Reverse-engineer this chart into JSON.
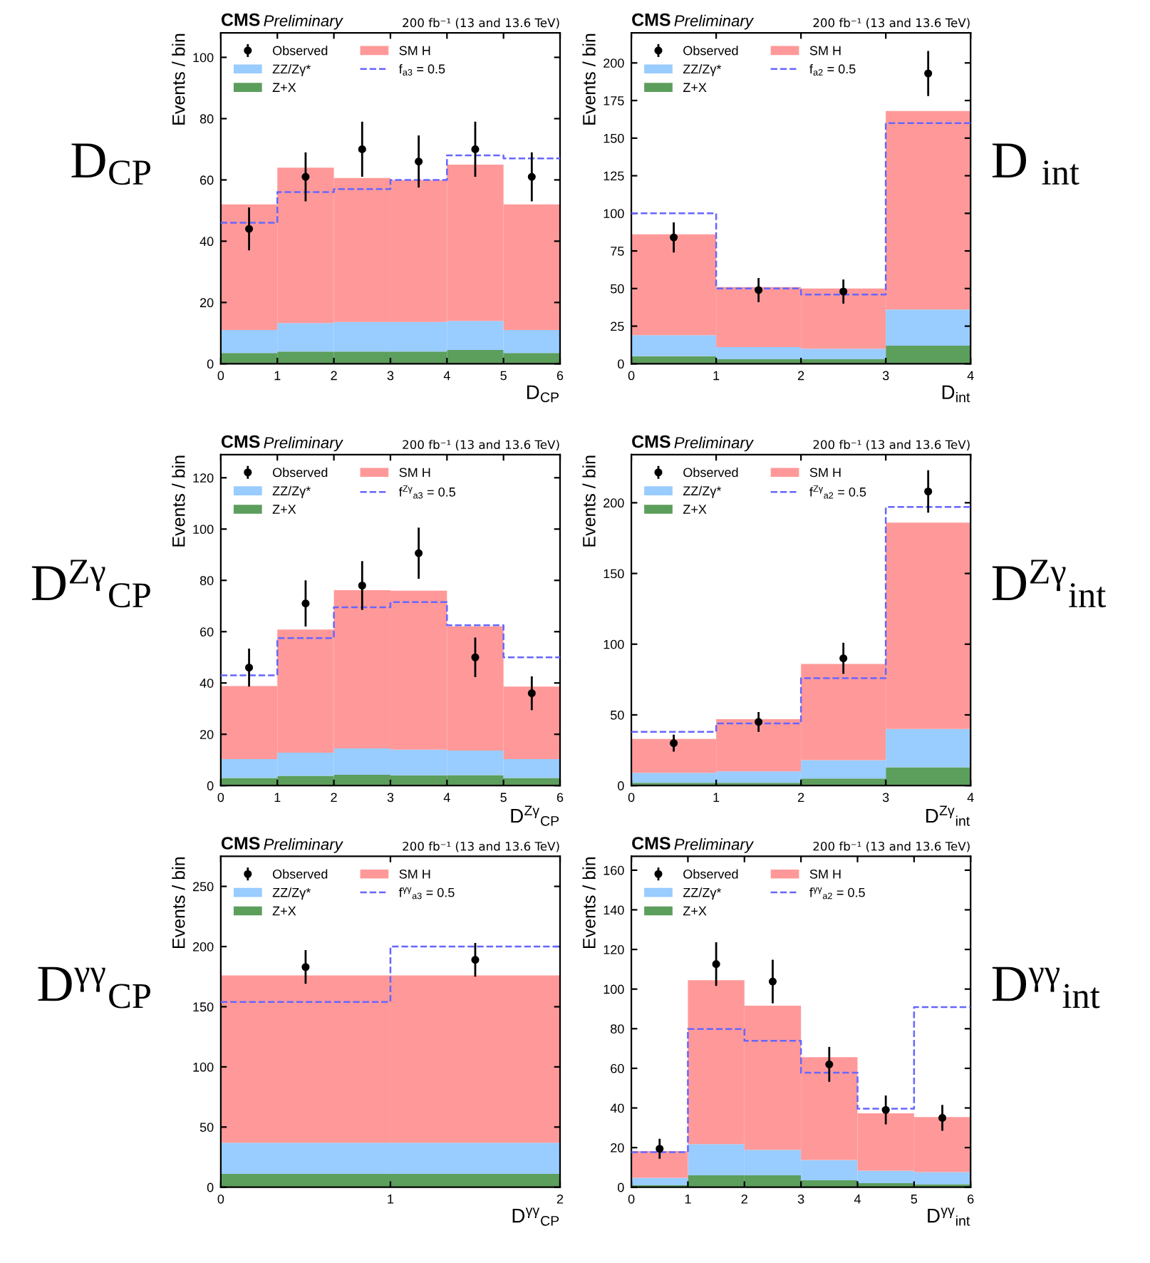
{
  "chart_data": [
    {
      "type": "bar",
      "title": "CMS",
      "subtitle": "Preliminary",
      "xlabel": "D$_{CP}$",
      "ylabel": "Events / bin",
      "annotations": [
        "200 fb⁻¹ (13 and 13.6 TeV)",
        "D$_{CP}$"
      ],
      "x": [
        0.5,
        1.5,
        2.5,
        3.5,
        4.5,
        5.5
      ],
      "stacked": true,
      "legend": "top left",
      "xlim": [
        0,
        6
      ],
      "xticks": [
        0,
        1,
        2,
        3,
        4,
        5,
        6
      ],
      "ylim": [
        0,
        108
      ],
      "yticks": [
        0,
        20,
        40,
        60,
        80,
        100
      ],
      "series": [
        {
          "name": "Z+X",
          "color": "#5c9e5c",
          "values": [
            3.5,
            4,
            4,
            4,
            4.5,
            3.5
          ]
        },
        {
          "name": "ZZ/Zγ*",
          "color": "#99ccff",
          "values": [
            7.5,
            9.3,
            9.6,
            9.6,
            9.5,
            7.5
          ]
        },
        {
          "name": "SM H",
          "color": "#ff9999",
          "values": [
            41,
            50.7,
            47,
            46.4,
            51,
            41
          ]
        },
        {
          "name": "f$_{a3}$ = 0.5",
          "type": "step",
          "line_style": "dashed",
          "color": "#6666ff",
          "x": [
            0,
            1,
            2,
            3,
            4,
            5,
            6
          ],
          "values": [
            46,
            56,
            57,
            60,
            68,
            67,
            67
          ]
        },
        {
          "name": "Observed",
          "type": "scatter",
          "marker": "circle",
          "color": "#000000",
          "values": [
            44,
            61,
            70,
            66,
            70,
            61
          ],
          "errors": [
            7,
            8,
            9,
            8.5,
            9,
            8
          ]
        }
      ]
    },
    {
      "type": "bar",
      "title": "CMS",
      "subtitle": "Preliminary",
      "xlabel": "D$_{int}$",
      "ylabel": "Events / bin",
      "annotations": [
        "200 fb⁻¹ (13 and 13.6 TeV)",
        "D $_{int}$"
      ],
      "x": [
        0.5,
        1.5,
        2.5,
        3.5
      ],
      "stacked": true,
      "legend": "top left",
      "xlim": [
        0,
        4
      ],
      "xticks": [
        0,
        1,
        2,
        3,
        4
      ],
      "ylim": [
        0,
        220
      ],
      "yticks": [
        0,
        25,
        50,
        75,
        100,
        125,
        150,
        175,
        200
      ],
      "series": [
        {
          "name": "Z+X",
          "color": "#5c9e5c",
          "values": [
            5,
            3,
            3,
            12
          ]
        },
        {
          "name": "ZZ/Zγ*",
          "color": "#99ccff",
          "values": [
            14,
            8,
            7,
            24
          ]
        },
        {
          "name": "SM H",
          "color": "#ff9999",
          "values": [
            67,
            40,
            40,
            132
          ]
        },
        {
          "name": "f$_{a2}$ = 0.5",
          "type": "step",
          "line_style": "dashed",
          "color": "#6666ff",
          "x": [
            0,
            1,
            2,
            3,
            4
          ],
          "values": [
            100,
            50,
            46,
            160,
            160
          ]
        },
        {
          "name": "Observed",
          "type": "scatter",
          "marker": "circle",
          "color": "#000000",
          "values": [
            84,
            49,
            48,
            193
          ],
          "errors": [
            10,
            8,
            8,
            15
          ]
        }
      ]
    },
    {
      "type": "bar",
      "title": "CMS",
      "subtitle": "Preliminary",
      "xlabel": "D$^{Zγ}$$_{CP}$",
      "ylabel": "Events / bin",
      "annotations": [
        "200 fb⁻¹ (13 and 13.6 TeV)",
        "D$^{Zγ}$$_{CP}$"
      ],
      "x": [
        0.5,
        1.5,
        2.5,
        3.5,
        4.5,
        5.5
      ],
      "stacked": true,
      "legend": "top left",
      "xlim": [
        0,
        6
      ],
      "xticks": [
        0,
        1,
        2,
        3,
        4,
        5,
        6
      ],
      "ylim": [
        0,
        129
      ],
      "yticks": [
        0,
        20,
        40,
        60,
        80,
        100,
        120
      ],
      "series": [
        {
          "name": "Z+X",
          "color": "#5c9e5c",
          "values": [
            3,
            3.8,
            4.2,
            4,
            4.1,
            3
          ]
        },
        {
          "name": "ZZ/Zγ*",
          "color": "#99ccff",
          "values": [
            7.3,
            9,
            10.3,
            10,
            9.6,
            7.3
          ]
        },
        {
          "name": "SM H",
          "color": "#ff9999",
          "values": [
            28.5,
            48,
            61.7,
            62,
            48.4,
            28.3
          ]
        },
        {
          "name": "f$^{Zγ}$$_{a3}$ = 0.5",
          "type": "step",
          "line_style": "dashed",
          "color": "#6666ff",
          "x": [
            0,
            1,
            2,
            3,
            4,
            5,
            6
          ],
          "values": [
            43,
            57.5,
            69.5,
            71.5,
            62.5,
            50,
            50
          ]
        },
        {
          "name": "Observed",
          "type": "scatter",
          "marker": "circle",
          "color": "#000000",
          "values": [
            46,
            71,
            78,
            90.6,
            50,
            36
          ],
          "errors": [
            7.4,
            9,
            9.5,
            10,
            7.7,
            6.6
          ]
        }
      ]
    },
    {
      "type": "bar",
      "title": "CMS",
      "subtitle": "Preliminary",
      "xlabel": "D$^{Zγ}$$_{int}$",
      "ylabel": "Events / bin",
      "annotations": [
        "200 fb⁻¹ (13 and 13.6 TeV)",
        "D$^{Zγ}$$_{int}$"
      ],
      "x": [
        0.5,
        1.5,
        2.5,
        3.5
      ],
      "stacked": true,
      "legend": "top left",
      "xlim": [
        0,
        4
      ],
      "xticks": [
        0,
        1,
        2,
        3,
        4
      ],
      "ylim": [
        0,
        234
      ],
      "yticks": [
        0,
        50,
        100,
        150,
        200
      ],
      "series": [
        {
          "name": "Z+X",
          "color": "#5c9e5c",
          "values": [
            2,
            2,
            5,
            13
          ]
        },
        {
          "name": "ZZ/Zγ*",
          "color": "#99ccff",
          "values": [
            7,
            8,
            13,
            27
          ]
        },
        {
          "name": "SM H",
          "color": "#ff9999",
          "values": [
            24,
            37,
            68,
            146
          ]
        },
        {
          "name": "f$^{Zγ}$$_{a2}$ = 0.5",
          "type": "step",
          "line_style": "dashed",
          "color": "#6666ff",
          "x": [
            0,
            1,
            2,
            3,
            4
          ],
          "values": [
            38,
            44,
            76,
            197,
            197
          ]
        },
        {
          "name": "Observed",
          "type": "scatter",
          "marker": "circle",
          "color": "#000000",
          "values": [
            30,
            45,
            90,
            208
          ],
          "errors": [
            6,
            7,
            11,
            15
          ]
        }
      ]
    },
    {
      "type": "bar",
      "title": "CMS",
      "subtitle": "Preliminary",
      "xlabel": "D$^{γγ}$$_{CP}$",
      "ylabel": "Events / bin",
      "annotations": [
        "200 fb⁻¹ (13 and 13.6 TeV)",
        "D$^{γγ}$$_{CP}$"
      ],
      "x": [
        0.5,
        1.5
      ],
      "stacked": true,
      "legend": "top left",
      "xlim": [
        0,
        2
      ],
      "xticks": [
        0,
        1,
        2
      ],
      "ylim": [
        0,
        275
      ],
      "yticks": [
        0,
        50,
        100,
        150,
        200,
        250
      ],
      "series": [
        {
          "name": "Z+X",
          "color": "#5c9e5c",
          "values": [
            11,
            11
          ]
        },
        {
          "name": "ZZ/Zγ*",
          "color": "#99ccff",
          "values": [
            26,
            26
          ]
        },
        {
          "name": "SM H",
          "color": "#ff9999",
          "values": [
            139,
            139
          ]
        },
        {
          "name": "f$^{γγ}$$_{a3}$ = 0.5",
          "type": "step",
          "line_style": "dashed",
          "color": "#6666ff",
          "x": [
            0,
            1,
            2
          ],
          "values": [
            154,
            200,
            200
          ]
        },
        {
          "name": "Observed",
          "type": "scatter",
          "marker": "circle",
          "color": "#000000",
          "values": [
            183,
            189
          ],
          "errors": [
            14,
            14
          ]
        }
      ]
    },
    {
      "type": "bar",
      "title": "CMS",
      "subtitle": "Preliminary",
      "xlabel": "D$^{γγ}$$_{int}$",
      "ylabel": "Events / bin",
      "annotations": [
        "200 fb⁻¹ (13 and 13.6 TeV)",
        "D$^{γγ}$$_{int}$"
      ],
      "x": [
        0.5,
        1.5,
        2.5,
        3.5,
        4.5,
        5.5
      ],
      "stacked": true,
      "legend": "top left",
      "xlim": [
        0,
        6
      ],
      "xticks": [
        0,
        1,
        2,
        3,
        4,
        5,
        6
      ],
      "ylim": [
        0,
        167
      ],
      "yticks": [
        0,
        20,
        40,
        60,
        80,
        100,
        120,
        140,
        160
      ],
      "series": [
        {
          "name": "Z+X",
          "color": "#5c9e5c",
          "values": [
            1,
            6,
            6,
            3.5,
            2,
            1.5
          ]
        },
        {
          "name": "ZZ/Zγ*",
          "color": "#99ccff",
          "values": [
            3.7,
            15.7,
            12.9,
            10.2,
            6.3,
            6.1
          ]
        },
        {
          "name": "SM H",
          "color": "#ff9999",
          "values": [
            13.5,
            82.8,
            72.7,
            51.9,
            29,
            27.8
          ]
        },
        {
          "name": "f$^{γγ}$$_{a2}$ = 0.5",
          "type": "step",
          "line_style": "dashed",
          "color": "#6666ff",
          "x": [
            0,
            1,
            2,
            3,
            4,
            5,
            6
          ],
          "values": [
            17.7,
            79.8,
            73.9,
            57.8,
            39.6,
            90.9,
            90.9
          ]
        },
        {
          "name": "Observed",
          "type": "scatter",
          "marker": "circle",
          "color": "#000000",
          "values": [
            19.4,
            112.6,
            103.8,
            62,
            39,
            35
          ],
          "errors": [
            5,
            11,
            11,
            8.8,
            7.3,
            6.5
          ]
        }
      ]
    }
  ]
}
